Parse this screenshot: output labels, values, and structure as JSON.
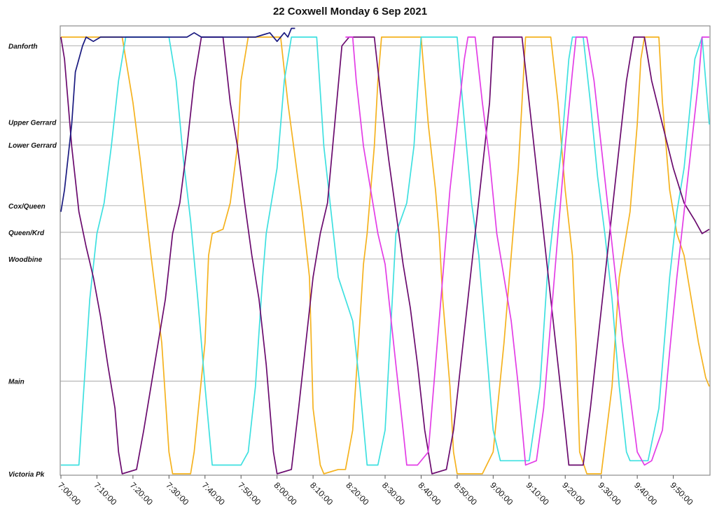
{
  "chart_data": {
    "type": "line",
    "title": "22 Coxwell Monday 6 Sep 2021",
    "xlabel": "",
    "ylabel": "",
    "x_axis": {
      "range_min": [
        0,
        180
      ],
      "ticks_min": [
        0,
        10,
        20,
        30,
        40,
        50,
        60,
        70,
        80,
        90,
        100,
        110,
        120,
        130,
        140,
        150,
        160,
        170
      ],
      "tick_labels": [
        "7:00:00",
        "7:10:00",
        "7:20:00",
        "7:30:00",
        "7:40:00",
        "7:50:00",
        "8:00:00",
        "8:10:00",
        "8:20:00",
        "8:30:00",
        "8:40:00",
        "8:50:00",
        "9:00:00",
        "9:10:00",
        "9:20:00",
        "9:30:00",
        "9:40:00",
        "9:50:00"
      ],
      "label_rotation": "diagonal"
    },
    "y_axis": {
      "range": [
        0,
        100
      ],
      "stops": [
        {
          "label": "Danforth",
          "pos": 98
        },
        {
          "label": "Upper Gerrard",
          "pos": 80.5
        },
        {
          "label": "Lower Gerrard",
          "pos": 75.3
        },
        {
          "label": "Cox/Queen",
          "pos": 61.4
        },
        {
          "label": "Queen/Krd",
          "pos": 55.3
        },
        {
          "label": "Woodbine",
          "pos": 49.2
        },
        {
          "label": "Main",
          "pos": 21.2
        },
        {
          "label": "Victoria Pk",
          "pos": 0
        }
      ]
    },
    "grid": true,
    "legend": "none",
    "series": [
      {
        "color": "#f5b21e",
        "points": [
          [
            0,
            100
          ],
          [
            17,
            100
          ],
          [
            20,
            85
          ],
          [
            22,
            72
          ],
          [
            25,
            50
          ],
          [
            28,
            30
          ],
          [
            30,
            5
          ],
          [
            31,
            0
          ],
          [
            36,
            0
          ],
          [
            37,
            5
          ],
          [
            40,
            30
          ],
          [
            41,
            50
          ],
          [
            42,
            55
          ],
          [
            45,
            56
          ],
          [
            47,
            62
          ],
          [
            49,
            75
          ],
          [
            50,
            90
          ],
          [
            52,
            100
          ],
          [
            61,
            100
          ],
          [
            63,
            85
          ],
          [
            67,
            60
          ],
          [
            69,
            45
          ],
          [
            70,
            15
          ],
          [
            72,
            2
          ],
          [
            73,
            0
          ],
          [
            77,
            1
          ],
          [
            79,
            1
          ],
          [
            81,
            10
          ],
          [
            83,
            35
          ],
          [
            84,
            48
          ],
          [
            85,
            55
          ],
          [
            87,
            75
          ],
          [
            88,
            90
          ],
          [
            89,
            100
          ],
          [
            100,
            100
          ],
          [
            102,
            80
          ],
          [
            104,
            65
          ],
          [
            105,
            55
          ],
          [
            106,
            40
          ],
          [
            108,
            20
          ],
          [
            109,
            5
          ],
          [
            110,
            0
          ],
          [
            117,
            0
          ],
          [
            120,
            5
          ],
          [
            123,
            30
          ],
          [
            125,
            50
          ],
          [
            127,
            70
          ],
          [
            128,
            85
          ],
          [
            129,
            100
          ],
          [
            136,
            100
          ],
          [
            138,
            85
          ],
          [
            140,
            65
          ],
          [
            142,
            50
          ],
          [
            143,
            30
          ],
          [
            144,
            5
          ],
          [
            146,
            0
          ],
          [
            150,
            0
          ],
          [
            153,
            20
          ],
          [
            155,
            45
          ],
          [
            158,
            60
          ],
          [
            160,
            80
          ],
          [
            161,
            95
          ],
          [
            162,
            100
          ],
          [
            166,
            100
          ],
          [
            167,
            85
          ],
          [
            169,
            65
          ],
          [
            171,
            55
          ],
          [
            173,
            50
          ],
          [
            175,
            40
          ],
          [
            177,
            30
          ],
          [
            179,
            22
          ],
          [
            180,
            20
          ]
        ]
      },
      {
        "color": "#3ee0e0",
        "points": [
          [
            0,
            2
          ],
          [
            5,
            2
          ],
          [
            6,
            15
          ],
          [
            8,
            40
          ],
          [
            10,
            55
          ],
          [
            12,
            62
          ],
          [
            14,
            75
          ],
          [
            16,
            90
          ],
          [
            18,
            100
          ],
          [
            30,
            100
          ],
          [
            32,
            90
          ],
          [
            34,
            72
          ],
          [
            36,
            58
          ],
          [
            38,
            40
          ],
          [
            40,
            20
          ],
          [
            42,
            2
          ],
          [
            50,
            2
          ],
          [
            52,
            5
          ],
          [
            54,
            20
          ],
          [
            56,
            45
          ],
          [
            57,
            55
          ],
          [
            60,
            70
          ],
          [
            62,
            90
          ],
          [
            64,
            100
          ],
          [
            71,
            100
          ],
          [
            73,
            75
          ],
          [
            75,
            60
          ],
          [
            77,
            45
          ],
          [
            81,
            35
          ],
          [
            83,
            20
          ],
          [
            85,
            2
          ],
          [
            88,
            2
          ],
          [
            90,
            10
          ],
          [
            92,
            40
          ],
          [
            93,
            55
          ],
          [
            96,
            62
          ],
          [
            98,
            75
          ],
          [
            100,
            100
          ],
          [
            110,
            100
          ],
          [
            111,
            90
          ],
          [
            114,
            62
          ],
          [
            116,
            50
          ],
          [
            118,
            30
          ],
          [
            120,
            10
          ],
          [
            122,
            3
          ],
          [
            130,
            3
          ],
          [
            133,
            20
          ],
          [
            135,
            45
          ],
          [
            137,
            60
          ],
          [
            139,
            75
          ],
          [
            141,
            95
          ],
          [
            142,
            100
          ],
          [
            145,
            100
          ],
          [
            147,
            85
          ],
          [
            149,
            68
          ],
          [
            151,
            55
          ],
          [
            153,
            40
          ],
          [
            155,
            20
          ],
          [
            157,
            5
          ],
          [
            158,
            3
          ],
          [
            163,
            3
          ],
          [
            166,
            15
          ],
          [
            169,
            45
          ],
          [
            171,
            60
          ],
          [
            173,
            70
          ],
          [
            176,
            95
          ],
          [
            178,
            100
          ],
          [
            180,
            80
          ]
        ]
      },
      {
        "color": "#6a0a6e",
        "points": [
          [
            0,
            100
          ],
          [
            1,
            95
          ],
          [
            3,
            75
          ],
          [
            5,
            60
          ],
          [
            7,
            52
          ],
          [
            9,
            45
          ],
          [
            11,
            36
          ],
          [
            13,
            25
          ],
          [
            15,
            15
          ],
          [
            16,
            5
          ],
          [
            17,
            0
          ],
          [
            21,
            1
          ],
          [
            23,
            10
          ],
          [
            25,
            20
          ],
          [
            27,
            30
          ],
          [
            29,
            40
          ],
          [
            31,
            55
          ],
          [
            33,
            62
          ],
          [
            35,
            75
          ],
          [
            37,
            90
          ],
          [
            39,
            100
          ],
          [
            45,
            100
          ],
          [
            47,
            85
          ],
          [
            49,
            75
          ],
          [
            51,
            62
          ],
          [
            53,
            50
          ],
          [
            55,
            40
          ],
          [
            57,
            25
          ],
          [
            59,
            5
          ],
          [
            60,
            0
          ],
          [
            64,
            1
          ],
          [
            66,
            15
          ],
          [
            68,
            30
          ],
          [
            70,
            45
          ],
          [
            72,
            55
          ],
          [
            74,
            62
          ],
          [
            76,
            80
          ],
          [
            78,
            98
          ],
          [
            80,
            100
          ],
          [
            87,
            100
          ],
          [
            89,
            85
          ],
          [
            91,
            72
          ],
          [
            93,
            60
          ],
          [
            95,
            48
          ],
          [
            97,
            38
          ],
          [
            99,
            25
          ],
          [
            101,
            10
          ],
          [
            103,
            0
          ],
          [
            107,
            1
          ],
          [
            109,
            10
          ],
          [
            111,
            25
          ],
          [
            113,
            40
          ],
          [
            115,
            55
          ],
          [
            117,
            70
          ],
          [
            119,
            85
          ],
          [
            120,
            100
          ],
          [
            128,
            100
          ],
          [
            130,
            85
          ],
          [
            132,
            70
          ],
          [
            134,
            55
          ],
          [
            136,
            40
          ],
          [
            138,
            25
          ],
          [
            140,
            10
          ],
          [
            141,
            2
          ],
          [
            145,
            2
          ],
          [
            147,
            15
          ],
          [
            149,
            30
          ],
          [
            151,
            45
          ],
          [
            153,
            60
          ],
          [
            155,
            75
          ],
          [
            157,
            90
          ],
          [
            159,
            100
          ],
          [
            162,
            100
          ],
          [
            164,
            90
          ],
          [
            167,
            80
          ],
          [
            170,
            70
          ],
          [
            173,
            62
          ],
          [
            176,
            58
          ],
          [
            178,
            55
          ],
          [
            180,
            56
          ]
        ]
      },
      {
        "color": "#e33de6",
        "points": [
          [
            79,
            100
          ],
          [
            81,
            100
          ],
          [
            82,
            90
          ],
          [
            84,
            75
          ],
          [
            86,
            65
          ],
          [
            88,
            55
          ],
          [
            90,
            48
          ],
          [
            93,
            25
          ],
          [
            95,
            10
          ],
          [
            96,
            2
          ],
          [
            99,
            2
          ],
          [
            102,
            5
          ],
          [
            104,
            25
          ],
          [
            106,
            45
          ],
          [
            108,
            65
          ],
          [
            110,
            80
          ],
          [
            112,
            95
          ],
          [
            113,
            100
          ],
          [
            115,
            100
          ],
          [
            117,
            85
          ],
          [
            119,
            72
          ],
          [
            121,
            55
          ],
          [
            123,
            45
          ],
          [
            125,
            35
          ],
          [
            127,
            20
          ],
          [
            129,
            2
          ],
          [
            132,
            3
          ],
          [
            134,
            15
          ],
          [
            136,
            35
          ],
          [
            138,
            55
          ],
          [
            140,
            75
          ],
          [
            142,
            92
          ],
          [
            143,
            100
          ],
          [
            146,
            100
          ],
          [
            148,
            90
          ],
          [
            150,
            75
          ],
          [
            152,
            60
          ],
          [
            154,
            45
          ],
          [
            156,
            30
          ],
          [
            158,
            18
          ],
          [
            160,
            5
          ],
          [
            162,
            2
          ],
          [
            164,
            3
          ],
          [
            167,
            10
          ],
          [
            169,
            28
          ],
          [
            171,
            45
          ],
          [
            173,
            60
          ],
          [
            175,
            75
          ],
          [
            177,
            90
          ],
          [
            178,
            100
          ],
          [
            180,
            100
          ]
        ]
      },
      {
        "color": "#1a1a80",
        "points": [
          [
            0,
            60
          ],
          [
            1,
            65
          ],
          [
            3,
            80
          ],
          [
            4,
            92
          ],
          [
            6,
            98
          ],
          [
            7,
            100
          ],
          [
            9,
            99
          ],
          [
            11,
            100
          ],
          [
            16,
            100
          ],
          [
            20,
            100
          ],
          [
            27,
            100
          ],
          [
            31,
            100
          ],
          [
            35,
            100
          ],
          [
            37,
            101
          ],
          [
            39,
            100
          ],
          [
            45,
            100
          ],
          [
            50,
            100
          ],
          [
            54,
            100
          ],
          [
            58,
            101
          ],
          [
            60,
            99
          ],
          [
            62,
            101
          ],
          [
            63,
            100
          ],
          [
            64,
            102
          ],
          [
            65,
            102
          ]
        ]
      }
    ]
  }
}
